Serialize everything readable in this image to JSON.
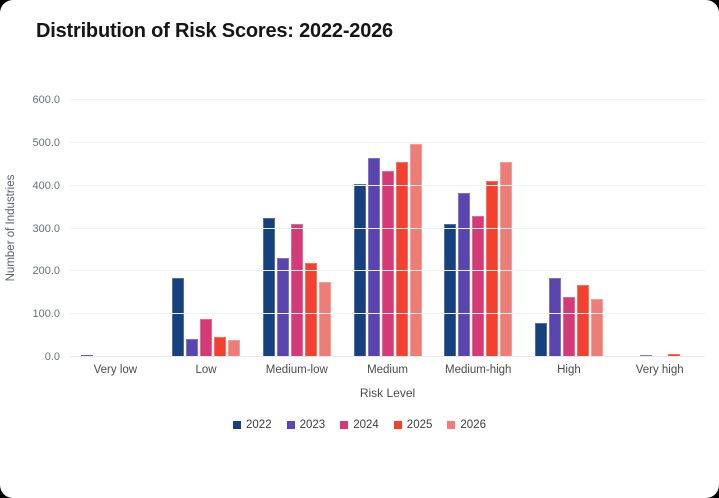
{
  "card": {
    "title": "Distribution of Risk Scores: 2022-2026"
  },
  "chart_data": {
    "type": "bar",
    "title": "Distribution of Risk Scores: 2022-2026",
    "xlabel": "Risk Level",
    "ylabel": "Number of Industries",
    "categories": [
      "Very low",
      "Low",
      "Medium-low",
      "Medium",
      "Medium-high",
      "High",
      "Very high"
    ],
    "series": [
      {
        "name": "2022",
        "color": "#17417e",
        "values": [
          5,
          184,
          325,
          403,
          310,
          79,
          0
        ]
      },
      {
        "name": "2023",
        "color": "#5a45ae",
        "values": [
          0,
          42,
          230,
          465,
          383,
          184,
          5
        ]
      },
      {
        "name": "2024",
        "color": "#d43a75",
        "values": [
          0,
          88,
          311,
          435,
          329,
          139,
          3
        ]
      },
      {
        "name": "2025",
        "color": "#f4402f",
        "values": [
          0,
          47,
          219,
          456,
          412,
          168,
          6
        ]
      },
      {
        "name": "2026",
        "color": "#ee7d78",
        "values": [
          0,
          39,
          176,
          497,
          455,
          135,
          2
        ]
      }
    ],
    "ylim": [
      0,
      600
    ],
    "ytick_step": 100,
    "yticks": [
      "0.0",
      "100.0",
      "200.0",
      "300.0",
      "400.0",
      "500.0",
      "600.0"
    ],
    "grid": true,
    "legend_position": "bottom"
  }
}
